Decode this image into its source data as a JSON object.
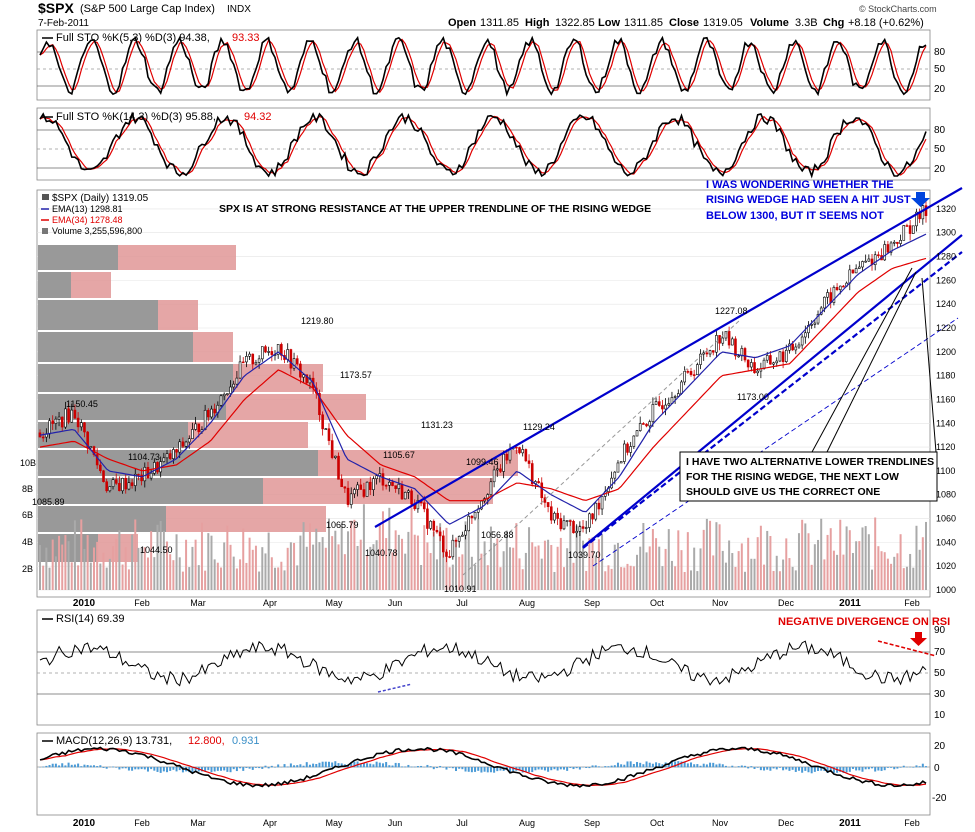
{
  "header": {
    "symbol": "$SPX",
    "name": "(S&P 500 Large Cap Index)",
    "exchange": "INDX",
    "date": "7-Feb-2011",
    "open_label": "Open",
    "open": "1311.85",
    "high_label": "High",
    "high": "1322.85",
    "low_label": "Low",
    "low": "1311.85",
    "close_label": "Close",
    "close": "1319.05",
    "volume_label": "Volume",
    "volume": "3.3B",
    "chg_label": "Chg",
    "chg": "+8.18 (+0.62%)",
    "watermark": "© StockCharts.com"
  },
  "sto1": {
    "label": "Full STO %K(5,3) %D(3) 94.38,",
    "d_value": "93.33",
    "ticks": [
      "80",
      "50",
      "20"
    ],
    "k_color": "#000000",
    "d_color": "#e00000"
  },
  "sto2": {
    "label": "Full STO %K(14,3) %D(3) 95.88,",
    "d_value": "94.32",
    "ticks": [
      "80",
      "50",
      "20"
    ]
  },
  "price": {
    "legend_price": "$SPX (Daily) 1319.05",
    "legend_ema13": "EMA(13) 1298.81",
    "legend_ema34": "EMA(34) 1278.48",
    "legend_volume": "Volume 3,255,596,800",
    "ema13_color": "#2222aa",
    "ema34_color": "#e00000",
    "trend_color": "#0000cc",
    "volume_ticks": [
      "10B",
      "8B",
      "6B",
      "4B",
      "2B"
    ],
    "axis_ticks": [
      "1320",
      "1300",
      "1280",
      "1260",
      "1240",
      "1220",
      "1200",
      "1180",
      "1160",
      "1140",
      "1120",
      "1100",
      "1080",
      "1060",
      "1040",
      "1020",
      "1000"
    ],
    "annotation_top": "SPX IS AT STRONG RESISTANCE AT THE UPPER TRENDLINE OF THE RISING WEDGE",
    "annotation_right": [
      "I WAS WONDERING WHETHER THE",
      "RISING WEDGE HAD SEEN A HIT JUST",
      "BELOW 1300, BUT IT SEEMS NOT"
    ],
    "annotation_box": [
      "I HAVE TWO ALTERNATIVE LOWER TRENDLINES",
      "FOR THE RISING WEDGE, THE NEXT LOW",
      "SHOULD GIVE US THE CORRECT ONE"
    ],
    "price_labels": [
      "1150.45",
      "1104.73",
      "1085.89",
      "1044.50",
      "1219.80",
      "1173.57",
      "1065.79",
      "1105.67",
      "1040.78",
      "1131.23",
      "1010.91",
      "1099.46",
      "1129.24",
      "1056.88",
      "1039.70",
      "1227.08",
      "1173.00"
    ]
  },
  "rsi": {
    "label": "RSI(14) 69.39",
    "ticks": [
      "90",
      "70",
      "50",
      "30",
      "10"
    ],
    "annotation": "NEGATIVE DIVERGENCE ON RSI"
  },
  "macd": {
    "label": "MACD(12,26,9) 13.731,",
    "signal": "12.800,",
    "histogram": "0.931",
    "ticks": [
      "20",
      "0",
      "-20"
    ]
  },
  "x_axis": [
    "2010",
    "Feb",
    "Mar",
    "Apr",
    "May",
    "Jun",
    "Jul",
    "Aug",
    "Sep",
    "Oct",
    "Nov",
    "Dec",
    "2011",
    "Feb"
  ],
  "chart_data": {
    "type": "line",
    "title": "$SPX (S&P 500 Large Cap Index) Daily",
    "x": [
      "2010-01",
      "2010-01b",
      "2010-02",
      "2010-02b",
      "2010-03",
      "2010-03b",
      "2010-04",
      "2010-04b",
      "2010-05",
      "2010-05b",
      "2010-06",
      "2010-06b",
      "2010-07",
      "2010-07b",
      "2010-08",
      "2010-08b",
      "2010-09",
      "2010-09b",
      "2010-10",
      "2010-10b",
      "2010-11",
      "2010-11b",
      "2010-12",
      "2010-12b",
      "2011-01",
      "2011-01b",
      "2011-02"
    ],
    "series": [
      {
        "name": "SPX close",
        "values": [
          1132,
          1150,
          1085,
          1095,
          1115,
          1150,
          1190,
          1205,
          1170,
          1075,
          1095,
          1075,
          1030,
          1080,
          1125,
          1060,
          1050,
          1110,
          1150,
          1180,
          1215,
          1185,
          1200,
          1240,
          1270,
          1290,
          1319
        ]
      },
      {
        "name": "EMA(13)",
        "values": [
          1130,
          1135,
          1100,
          1095,
          1110,
          1140,
          1180,
          1200,
          1175,
          1110,
          1095,
          1085,
          1055,
          1070,
          1100,
          1080,
          1065,
          1095,
          1140,
          1170,
          1200,
          1195,
          1205,
          1235,
          1265,
          1285,
          1298.81
        ]
      },
      {
        "name": "EMA(34)",
        "values": [
          1120,
          1125,
          1110,
          1100,
          1105,
          1125,
          1160,
          1185,
          1170,
          1130,
          1105,
          1095,
          1075,
          1075,
          1090,
          1085,
          1075,
          1085,
          1120,
          1150,
          1180,
          1185,
          1190,
          1220,
          1250,
          1270,
          1278.48
        ]
      }
    ],
    "ylim": [
      1000,
      1330
    ],
    "key_levels": {
      "1150.45": "Jan high",
      "1044.50": "Feb low",
      "1219.80": "Apr high",
      "1010.91": "Jul low",
      "1039.70": "Aug low",
      "1227.08": "Nov high",
      "1173.00": "Nov low"
    }
  }
}
